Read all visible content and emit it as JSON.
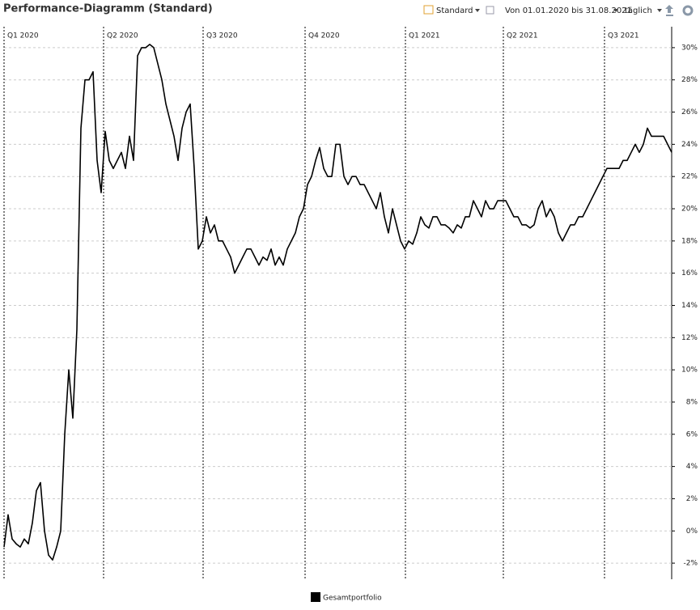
{
  "chart_data": {
    "type": "line",
    "title": "Performance-Diagramm (Standard)",
    "toolbar": {
      "view": "Standard",
      "range": "Von 01.01.2020 bis 31.08.2021",
      "interval": "täglich"
    },
    "xlim": [
      0,
      165
    ],
    "xticks": [
      {
        "value": 0,
        "label": "Q1 2020"
      },
      {
        "value": 24.6,
        "label": "Q2 2020"
      },
      {
        "value": 49.2,
        "label": "Q3 2020"
      },
      {
        "value": 74.4,
        "label": "Q4 2020"
      },
      {
        "value": 99.2,
        "label": "Q1 2021"
      },
      {
        "value": 123.4,
        "label": "Q2 2021"
      },
      {
        "value": 148.4,
        "label": "Q3 2021"
      }
    ],
    "ylim": [
      -3,
      31.2
    ],
    "yticks": [
      {
        "value": -2,
        "label": "-2%"
      },
      {
        "value": 0,
        "label": "0%"
      },
      {
        "value": 2,
        "label": "2%"
      },
      {
        "value": 4,
        "label": "4%"
      },
      {
        "value": 6,
        "label": "6%"
      },
      {
        "value": 8,
        "label": "8%"
      },
      {
        "value": 10,
        "label": "10%"
      },
      {
        "value": 12,
        "label": "12%"
      },
      {
        "value": 14,
        "label": "14%"
      },
      {
        "value": 16,
        "label": "16%"
      },
      {
        "value": 18,
        "label": "18%"
      },
      {
        "value": 20,
        "label": "20%"
      },
      {
        "value": 22,
        "label": "22%"
      },
      {
        "value": 24,
        "label": "24%"
      },
      {
        "value": 26,
        "label": "26%"
      },
      {
        "value": 28,
        "label": "28%"
      },
      {
        "value": 30,
        "label": "30%"
      }
    ],
    "grid": true,
    "series": [
      {
        "name": "Gesamtportfolio",
        "color": "#000000",
        "values": [
          -1,
          1,
          -0.5,
          -0.8,
          -1,
          -0.5,
          -0.8,
          0.5,
          2.5,
          3,
          0,
          -1.5,
          -1.8,
          -1,
          0,
          6,
          10,
          7,
          12.5,
          25,
          28,
          28,
          28.5,
          23,
          21,
          24.8,
          23,
          22.5,
          23,
          23.5,
          22.5,
          24.5,
          23,
          29.5,
          30,
          30,
          30.2,
          30,
          29,
          28,
          26.5,
          25.5,
          24.5,
          23,
          25,
          26,
          26.5,
          22.5,
          17.5,
          18,
          19.5,
          18.5,
          19,
          18,
          18,
          17.5,
          17,
          16,
          16.5,
          17,
          17.5,
          17.5,
          17,
          16.5,
          17,
          16.8,
          17.5,
          16.5,
          17,
          16.5,
          17.5,
          18,
          18.5,
          19.5,
          20,
          21.5,
          22,
          23,
          23.8,
          22.5,
          22,
          22,
          24,
          24,
          22,
          21.5,
          22,
          22,
          21.5,
          21.5,
          21,
          20.5,
          20,
          21,
          19.5,
          18.5,
          20,
          19,
          18,
          17.5,
          18,
          17.8,
          18.5,
          19.5,
          19,
          18.8,
          19.5,
          19.5,
          19,
          19,
          18.8,
          18.5,
          19,
          18.8,
          19.5,
          19.5,
          20.5,
          20,
          19.5,
          20.5,
          20,
          20,
          20.5,
          20.5,
          20.5,
          20,
          19.5,
          19.5,
          19,
          19,
          18.8,
          19,
          20,
          20.5,
          19.5,
          20,
          19.5,
          18.5,
          18,
          18.5,
          19,
          19,
          19.5,
          19.5,
          20,
          20.5,
          21,
          21.5,
          22,
          22.5,
          22.5,
          22.5,
          22.5,
          23,
          23,
          23.5,
          24,
          23.5,
          24,
          25,
          24.5,
          24.5,
          24.5,
          24.5,
          24,
          23.5
        ]
      }
    ]
  }
}
